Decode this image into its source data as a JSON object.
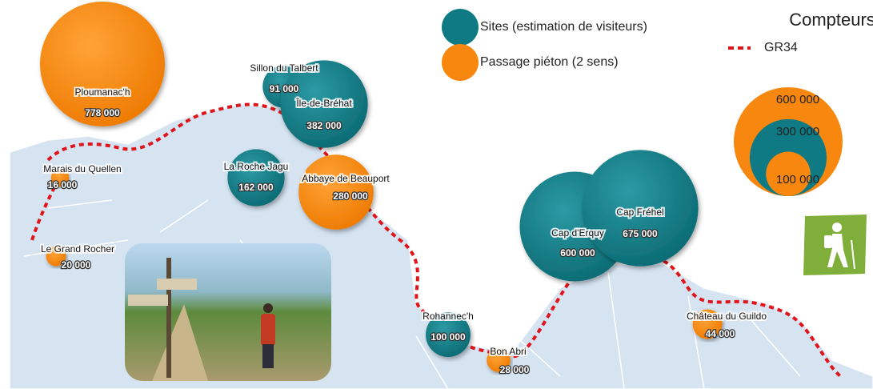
{
  "legend": {
    "title": "Compteurs",
    "sites": {
      "label": "Sites (estimation de visiteurs)",
      "color": "#0f7a84"
    },
    "passages": {
      "label": "Passage piéton (2 sens)",
      "color": "#f7870f"
    },
    "trail": {
      "label": "GR34",
      "color": "#e0141b"
    },
    "scale": [
      {
        "value": 600000,
        "label": "600 000"
      },
      {
        "value": 300000,
        "label": "300 000"
      },
      {
        "value": 100000,
        "label": "100 000"
      }
    ]
  },
  "sites": [
    {
      "name": "Sillon du Talbert",
      "value": 91000,
      "value_label": "91 000"
    },
    {
      "name": "Île-de-Bréhat",
      "value": 382000,
      "value_label": "382 000"
    },
    {
      "name": "La Roche Jagu",
      "value": 162000,
      "value_label": "162 000"
    },
    {
      "name": "Cap d'Erquy",
      "value": 600000,
      "value_label": "600 000"
    },
    {
      "name": "Cap Fréhel",
      "value": 675000,
      "value_label": "675 000"
    },
    {
      "name": "Rohannec'h",
      "value": 100000,
      "value_label": "100 000"
    }
  ],
  "passages": [
    {
      "name": "Ploumanac'h",
      "value": 778000,
      "value_label": "778 000"
    },
    {
      "name": "Marais du Quellen",
      "value": 16000,
      "value_label": "16 000"
    },
    {
      "name": "Le Grand Rocher",
      "value": 20000,
      "value_label": "20 000"
    },
    {
      "name": "Abbaye de Beauport",
      "value": 280000,
      "value_label": "280 000"
    },
    {
      "name": "Bon Abri",
      "value": 28000,
      "value_label": "28 000"
    },
    {
      "name": "Château du Guildo",
      "value": 44000,
      "value_label": "44 000"
    }
  ]
}
